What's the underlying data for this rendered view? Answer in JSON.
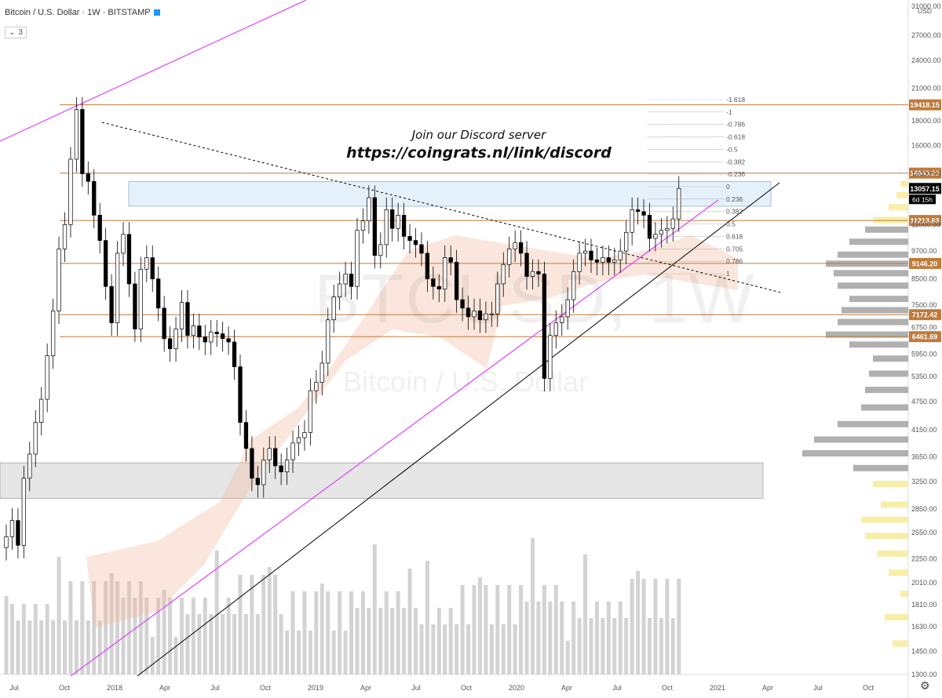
{
  "header": {
    "symbol_title": "Bitcoin / U.S. Dollar · 1W · BITSTAMP",
    "indicator_count": "3",
    "currency": "USD"
  },
  "promo": {
    "line1": "Join our Discord server",
    "line2": "https://coingrats.nl/link/discord"
  },
  "watermark": {
    "ticker": "BTCUSD, 1W",
    "name": "Bitcoin / U.S. Dollar"
  },
  "colors": {
    "candle": "#000000",
    "level_line": "#c07a3a",
    "magenta_trend": "#e040fb",
    "cloud": "#f0b89a",
    "volume": "#c8c8c8",
    "volume_profile": "#b0b0b0",
    "volume_profile_hl": "#f7eea8",
    "badge_bg": "#c07a3a",
    "current_price_bg": "#000000"
  },
  "chart_data": {
    "type": "candlestick",
    "timeframe": "1W",
    "exchange": "BITSTAMP",
    "scale": "log",
    "ylim": [
      1300,
      31000
    ],
    "x_ticks": [
      "Jul",
      "Oct",
      "2018",
      "Apr",
      "Jul",
      "Oct",
      "2019",
      "Apr",
      "Jul",
      "Oct",
      "2020",
      "Apr",
      "Jul",
      "Oct",
      "2021",
      "Apr",
      "Jul",
      "Oct"
    ],
    "y_ticks": [
      "31000.00",
      "27000.00",
      "24000.00",
      "21000.00",
      "18000.00",
      "16000.00",
      "14000.00",
      "11000.00",
      "9700.00",
      "8500.00",
      "7500.00",
      "6750.00",
      "5950.00",
      "5350.00",
      "4750.00",
      "4150.00",
      "3650.00",
      "3250.00",
      "2850.00",
      "2550.00",
      "2250.00",
      "2010.00",
      "1810.00",
      "1630.00",
      "1450.00",
      "1300.00"
    ],
    "horizontal_levels": [
      {
        "label": "19418.15",
        "price": 19418.15
      },
      {
        "label": "14043.22",
        "price": 14043.22
      },
      {
        "label": "11213.63",
        "price": 11213.63
      },
      {
        "label": "9146.20",
        "price": 9146.2
      },
      {
        "label": "7172.42",
        "price": 7172.42
      },
      {
        "label": "6461.69",
        "price": 6461.69
      }
    ],
    "current_price": "13057.15",
    "countdown": "6d 15h",
    "fibonacci_levels": [
      "-1.618",
      "-1",
      "-0.786",
      "-0.618",
      "-0.5",
      "-0.382",
      "-0.236",
      "0",
      "0.236",
      "0.382",
      "0.5",
      "0.618",
      "0.705",
      "0.786",
      "1"
    ],
    "zones": [
      {
        "name": "support",
        "from": 3000,
        "to": 3550
      },
      {
        "name": "resistance",
        "from": 12000,
        "to": 13500
      }
    ],
    "candles_close": [
      2500,
      2700,
      2400,
      3300,
      3700,
      4300,
      4800,
      5900,
      7300,
      9800,
      11000,
      15000,
      19000,
      14000,
      13500,
      11500,
      10200,
      8200,
      6900,
      9600,
      10500,
      8300,
      6700,
      8900,
      9400,
      8500,
      7400,
      6400,
      6100,
      6700,
      7600,
      6500,
      6800,
      6450,
      6300,
      6600,
      6550,
      6400,
      6300,
      5600,
      4300,
      3800,
      3300,
      3200,
      3600,
      3800,
      3500,
      3400,
      3600,
      3900,
      4000,
      4100,
      5000,
      5200,
      5700,
      7000,
      7800,
      8300,
      8700,
      8200,
      10700,
      11200,
      12500,
      9500,
      10000,
      11800,
      10800,
      11500,
      10400,
      10200,
      10000,
      9600,
      8500,
      8200,
      8100,
      9400,
      9200,
      7700,
      7400,
      7100,
      7300,
      7000,
      7200,
      7200,
      8300,
      9100,
      9800,
      10100,
      9600,
      8600,
      8800,
      8700,
      5300,
      6500,
      6900,
      7100,
      7700,
      8800,
      9600,
      9700,
      9300,
      9200,
      9400,
      9200,
      9300,
      9700,
      10600,
      11800,
      11700,
      11500,
      10300,
      10500,
      10700,
      10800,
      11300,
      13057
    ]
  }
}
